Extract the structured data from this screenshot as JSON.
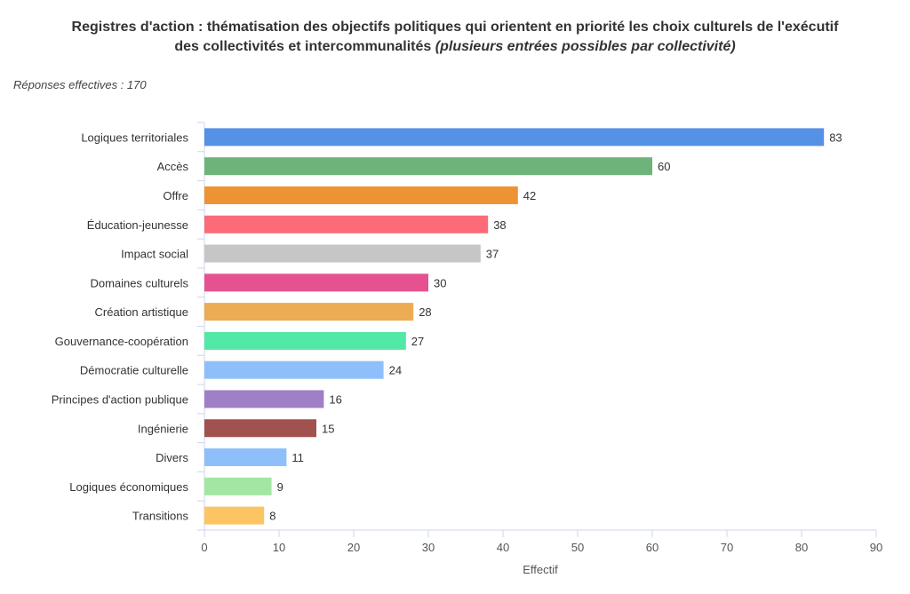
{
  "header": {
    "title_line1": "Registres d'action : thématisation des objectifs politiques qui orientent en priorité les choix culturels de l'exécutif",
    "title_line2": "des collectivités et intercommunalités",
    "title_note": "(plusieurs entrées possibles par collectivité)",
    "subtitle": "Réponses effectives : 170"
  },
  "chart_data": {
    "type": "bar",
    "orientation": "horizontal",
    "categories": [
      "Logiques territoriales",
      "Accès",
      "Offre",
      "Éducation-jeunesse",
      "Impact social",
      "Domaines culturels",
      "Création artistique",
      "Gouvernance-coopération",
      "Démocratie culturelle",
      "Principes d'action publique",
      "Ingénierie",
      "Divers",
      "Logiques économiques",
      "Transitions"
    ],
    "values": [
      83,
      60,
      42,
      38,
      37,
      30,
      28,
      27,
      24,
      16,
      15,
      11,
      9,
      8
    ],
    "colors": [
      "#5591e7",
      "#6db37a",
      "#ee9334",
      "#fb6b78",
      "#c6c6c6",
      "#e5528f",
      "#ebac54",
      "#52e8a6",
      "#8ebffb",
      "#9f80c7",
      "#a1514e",
      "#8ebffb",
      "#a3e6a3",
      "#fcc462"
    ],
    "xlabel": "Effectif",
    "xlim": [
      0,
      90
    ],
    "xticks": [
      0,
      10,
      20,
      30,
      40,
      50,
      60,
      70,
      80,
      90
    ],
    "data_labels": true,
    "grid": false
  }
}
